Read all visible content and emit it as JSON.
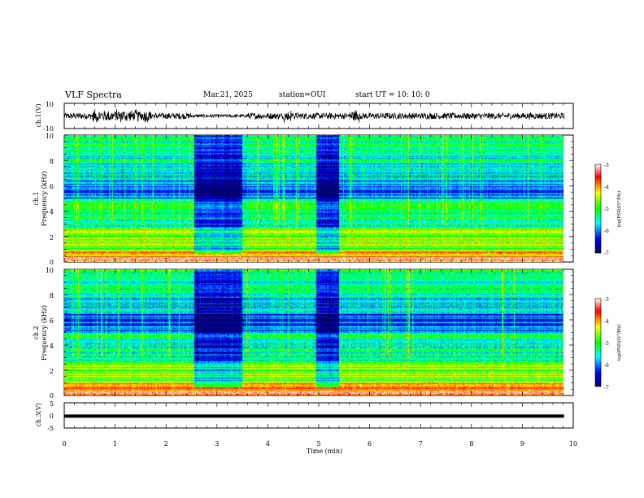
{
  "header": {
    "title": "VLF Spectra",
    "date": "Mar.21, 2025",
    "station": "station=OUI",
    "start": "start  UT =   10: 10: 0"
  },
  "colors": {
    "colormap": [
      "#ffffff",
      "#ff0000",
      "#ffff00",
      "#00ff00",
      "#00ffff",
      "#0000ff",
      "#000066"
    ],
    "trace": "#000000"
  },
  "chart_data": [
    {
      "type": "line",
      "name": "ch1-waveform",
      "ylabel": "ch.1(V)",
      "ylim": [
        -10,
        10
      ],
      "yticks": [
        "10",
        "-10"
      ],
      "xlim": [
        0,
        10
      ],
      "description_values": {
        "amplitude_typical_V": 2.5,
        "amplitude_burst_V": 6
      }
    },
    {
      "type": "heatmap",
      "name": "ch1-spectrogram",
      "ylabel": "Frequency (kHz)",
      "channel_label": "ch.1",
      "xlim": [
        0,
        9.82
      ],
      "ylim": [
        0,
        10
      ],
      "yticks": [
        "0",
        "2",
        "4",
        "6",
        "8",
        "10"
      ],
      "quiet_intervals_min": [
        [
          2.55,
          3.5
        ],
        [
          4.95,
          5.4
        ]
      ],
      "colorbar": {
        "label": "log(PSD)(V²/Hz)",
        "ticks": [
          "-3",
          "-4",
          "-5",
          "-6",
          "-7"
        ],
        "range": [
          -7,
          -3
        ]
      }
    },
    {
      "type": "heatmap",
      "name": "ch2-spectrogram",
      "ylabel": "Frequency (kHz)",
      "channel_label": "ch.2",
      "xlim": [
        0,
        9.82
      ],
      "ylim": [
        0,
        10
      ],
      "yticks": [
        "0",
        "2",
        "4",
        "6",
        "8",
        "10"
      ],
      "quiet_intervals_min": [
        [
          2.55,
          3.5
        ],
        [
          4.95,
          5.4
        ]
      ],
      "colorbar": {
        "label": "log(PSD)(V²/Hz)",
        "ticks": [
          "-3",
          "-4",
          "-5",
          "-6",
          "-7"
        ],
        "range": [
          -7,
          -3
        ]
      }
    },
    {
      "type": "line",
      "name": "ch3-waveform",
      "ylabel": "ch.3(V)",
      "ylim": [
        -5,
        5
      ],
      "yticks": [
        "5",
        "0",
        "-5"
      ],
      "x": [
        0,
        9.82
      ],
      "values": [
        -0.3,
        -0.3
      ]
    }
  ],
  "xaxis": {
    "label": "Time (min)",
    "ticks": [
      "0",
      "1",
      "2",
      "3",
      "4",
      "5",
      "6",
      "7",
      "8",
      "9",
      "10"
    ],
    "range": [
      0,
      10
    ]
  }
}
